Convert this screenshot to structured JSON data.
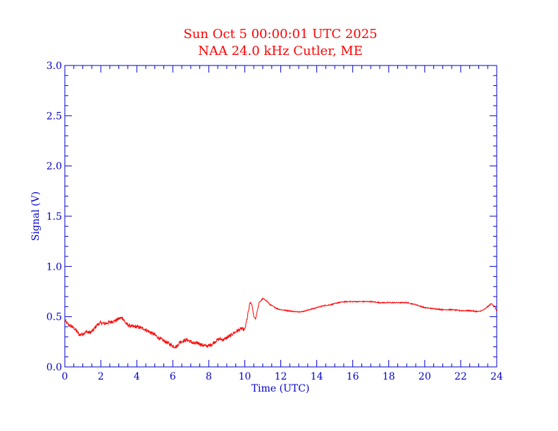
{
  "colors": {
    "title": "#ff0000",
    "axes": "#0000cc",
    "signal": "#ff0000",
    "background": "#ffffff"
  },
  "chart_data": {
    "type": "line",
    "title": "Sun Oct 5 00:00:01 UTC 2025",
    "subtitle": "NAA 24.0 kHz Cutler, ME",
    "xlabel": "Time (UTC)",
    "ylabel": "Signal (V)",
    "xlim": [
      0,
      24
    ],
    "ylim": [
      0,
      3.0
    ],
    "x_ticks": [
      "0",
      "2",
      "4",
      "6",
      "8",
      "10",
      "12",
      "14",
      "16",
      "18",
      "20",
      "22",
      "24"
    ],
    "y_ticks": [
      "0.0",
      "0.5",
      "1.0",
      "1.5",
      "2.0",
      "2.5",
      "3.0"
    ],
    "grid": false,
    "series": [
      {
        "x": [
          0,
          0.2,
          0.4,
          0.6,
          0.8,
          1.0,
          1.2,
          1.4,
          1.6,
          1.8,
          2.0,
          2.2,
          2.4,
          2.6,
          2.8,
          3.0,
          3.2,
          3.4,
          3.6,
          3.8,
          4.0,
          4.2,
          4.4,
          4.6,
          4.8,
          5.0,
          5.2,
          5.4,
          5.6,
          5.8,
          6.0,
          6.2,
          6.4,
          6.6,
          6.8,
          7.0,
          7.2,
          7.4,
          7.6,
          7.8,
          8.0,
          8.2,
          8.4,
          8.6,
          8.8,
          9.0,
          9.2,
          9.4,
          9.6,
          9.8,
          10.0,
          10.1,
          10.2,
          10.3,
          10.4,
          10.5,
          10.6,
          10.7,
          10.8,
          11.0,
          11.2,
          11.4,
          11.6,
          11.8,
          12.0,
          12.4,
          12.8,
          13.2,
          13.6,
          14.0,
          14.4,
          14.8,
          15.2,
          15.6,
          16.0,
          16.5,
          17.0,
          17.5,
          18.0,
          18.5,
          19.0,
          19.5,
          20.0,
          20.5,
          21.0,
          21.5,
          22.0,
          22.5,
          23.0,
          23.3,
          23.5,
          23.7,
          23.9,
          24.0
        ],
        "y": [
          0.46,
          0.42,
          0.4,
          0.37,
          0.32,
          0.33,
          0.35,
          0.34,
          0.37,
          0.42,
          0.44,
          0.43,
          0.44,
          0.45,
          0.46,
          0.48,
          0.49,
          0.43,
          0.41,
          0.4,
          0.4,
          0.39,
          0.38,
          0.36,
          0.34,
          0.32,
          0.29,
          0.27,
          0.25,
          0.23,
          0.21,
          0.2,
          0.25,
          0.26,
          0.27,
          0.25,
          0.23,
          0.24,
          0.22,
          0.21,
          0.21,
          0.23,
          0.26,
          0.28,
          0.27,
          0.29,
          0.31,
          0.34,
          0.36,
          0.38,
          0.37,
          0.45,
          0.55,
          0.64,
          0.62,
          0.5,
          0.48,
          0.56,
          0.64,
          0.68,
          0.66,
          0.62,
          0.6,
          0.58,
          0.57,
          0.56,
          0.55,
          0.55,
          0.57,
          0.59,
          0.61,
          0.62,
          0.64,
          0.65,
          0.65,
          0.65,
          0.65,
          0.64,
          0.64,
          0.64,
          0.64,
          0.62,
          0.59,
          0.58,
          0.57,
          0.57,
          0.56,
          0.56,
          0.55,
          0.57,
          0.6,
          0.63,
          0.6,
          0.55
        ]
      }
    ]
  }
}
